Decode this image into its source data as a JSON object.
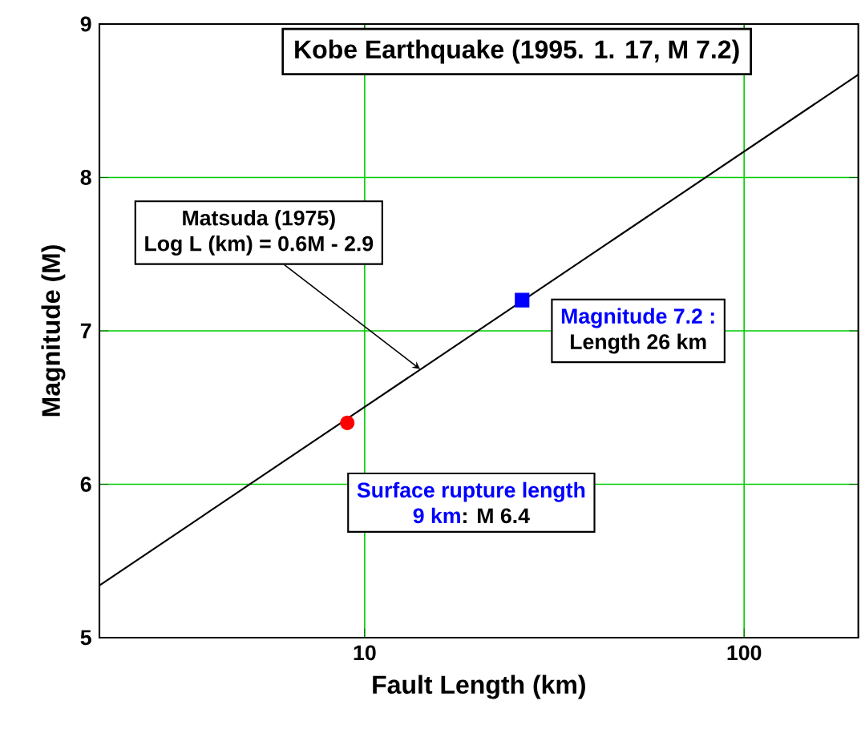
{
  "chart_data": {
    "type": "line",
    "title": "Kobe Earthquake (1995. 1. 17, M 7.2)",
    "xlabel": "Fault Length (km)",
    "ylabel": "Magnitude (M)",
    "xlim": [
      2,
      200
    ],
    "ylim": [
      5,
      9
    ],
    "xticks": [
      10,
      100
    ],
    "yticks": [
      5,
      6,
      7,
      8,
      9
    ],
    "log": "x",
    "grid": true,
    "series": [
      {
        "x": [
          2,
          200
        ],
        "values": [
          5.34,
          8.67
        ],
        "color": "#000000"
      },
      {
        "type": "scatter",
        "x": [
          9
        ],
        "values": [
          6.4
        ],
        "color": "#ff0000",
        "marker": "circle"
      },
      {
        "type": "scatter",
        "x": [
          26
        ],
        "values": [
          7.2
        ],
        "color": "#0000ff",
        "marker": "square"
      }
    ],
    "annotations": [
      "Matsuda (1975)",
      {
        "text": "Log L (km) = 0.6M - 2.9",
        "x": 14,
        "y": 6.75
      },
      "Magnitude 7.2 :",
      "Length 26 km",
      "Surface rupture length",
      "9 km",
      ": M 6.4"
    ]
  }
}
